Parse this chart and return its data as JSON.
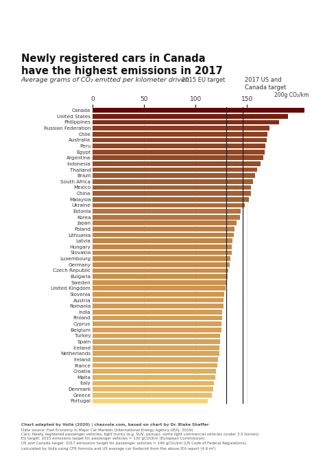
{
  "title_line1": "Newly registered cars in Canada",
  "title_line2": "have the highest emissions in 2017",
  "subtitle": "Average grams of CO₂ emitted per kilometer driven",
  "eu_target_label": "2015 EU target",
  "us_canada_label": "2017 US and\nCanada target",
  "eu_target_value": 130,
  "us_canada_target_value": 146,
  "xlim": [
    0,
    210
  ],
  "xticks": [
    0,
    50,
    100,
    150
  ],
  "xlabel_unit": "200g CO₂/km",
  "countries": [
    "Canada",
    "United States",
    "Philippines",
    "Russian Federation",
    "Chile",
    "Australia",
    "Peru",
    "Egypt",
    "Argentina",
    "Indonesia",
    "Thailand",
    "Brazil",
    "South Africa",
    "Mexico",
    "China",
    "Malaysia",
    "Ukraine",
    "Estonia",
    "Korea",
    "Japan",
    "Poland",
    "Lithuania",
    "Latvia",
    "Hungary",
    "Slovakia",
    "Luxembourg",
    "Germany",
    "Czech Republic",
    "Bulgaria",
    "Sweden",
    "United Kingdom",
    "Slovenia",
    "Austria",
    "Romania",
    "India",
    "Finland",
    "Cyprus",
    "Belgium",
    "Turkey",
    "Spain",
    "Iceland",
    "Netherlands",
    "Ireland",
    "France",
    "Croatia",
    "Malta",
    "Italy",
    "Denmark",
    "Greece",
    "Portugal"
  ],
  "values": [
    206,
    190,
    181,
    172,
    170,
    169,
    168,
    167,
    166,
    163,
    160,
    158,
    156,
    154,
    154,
    152,
    148,
    144,
    143,
    140,
    138,
    137,
    136,
    135,
    135,
    134,
    133,
    132,
    131,
    130,
    129,
    128,
    127,
    127,
    126,
    126,
    125,
    125,
    124,
    124,
    123,
    123,
    122,
    121,
    120,
    119,
    118,
    117,
    116,
    112
  ],
  "color_low": [
    255,
    210,
    110
  ],
  "color_high": [
    100,
    5,
    0
  ],
  "color_mid": [
    200,
    50,
    10
  ],
  "footnote_bold": "Chart adapted by Voilà (2020) | chezvola.com, based on chart by Dr. Blake Shaffer",
  "footnote_rest": "Data source: Fuel Economy in Major Car Markets (International Energy Agency (IEA), 2019)\nCars: Newly registered passenger vehicles, light trucks (e.g. SUV, pickup), some light commercial vehicles (under 3.5 tonnes)\nEU target: 2015 emissions target for passenger vehicles = 130 gCO₂/km (European Commission)\nUS and Canada target: 2017 emissions target for passenger vehicles = 146 gCO₂/km (US Code of Federal Regulations),\ncalculated by Voilà using CFR formula and US average car footprint from the above IEA report (4.6 m²)",
  "background_color": "#ffffff",
  "bar_height": 0.78
}
